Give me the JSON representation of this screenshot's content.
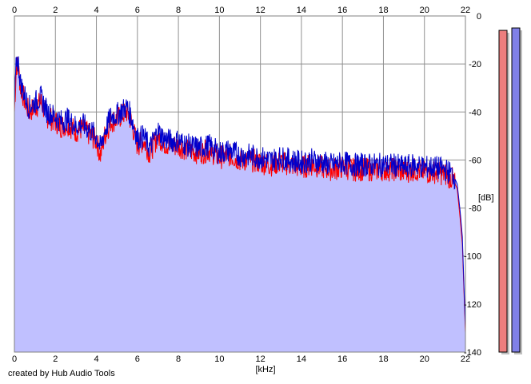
{
  "credit": "created by Hub Audio Tools",
  "chart_data": {
    "type": "area",
    "xlabel": "[kHz]",
    "ylabel": "[dB]",
    "xlim": [
      0,
      22
    ],
    "ylim": [
      -140,
      0
    ],
    "x_ticks": [
      0,
      2,
      4,
      6,
      8,
      10,
      12,
      14,
      16,
      18,
      20,
      22
    ],
    "y_ticks": [
      0,
      -20,
      -40,
      -60,
      -80,
      -100,
      -120,
      -140
    ],
    "grid": true,
    "x_axis_labels": "top-and-bottom",
    "y_axis_labels": "right",
    "series": [
      {
        "color": "#ff0000",
        "x": [
          0,
          0.1,
          0.2,
          0.3,
          0.5,
          0.7,
          1.0,
          1.3,
          1.6,
          2.0,
          2.3,
          2.6,
          3.0,
          3.3,
          3.6,
          4.0,
          4.2,
          4.4,
          4.7,
          5.0,
          5.3,
          5.5,
          5.7,
          6.0,
          6.3,
          6.6,
          7.0,
          7.3,
          7.6,
          8.0,
          8.5,
          9.0,
          9.5,
          10.0,
          10.5,
          11.0,
          11.5,
          12.0,
          12.5,
          13.0,
          13.5,
          14.0,
          14.5,
          15.0,
          15.5,
          16.0,
          16.5,
          17.0,
          17.5,
          18.0,
          18.5,
          19.0,
          19.5,
          20.0,
          20.5,
          21.0,
          21.4,
          21.6,
          21.75,
          21.85,
          21.95,
          22.0
        ],
        "y": [
          -40,
          -20,
          -22,
          -30,
          -35,
          -40,
          -38,
          -36,
          -42,
          -44,
          -46,
          -45,
          -48,
          -47,
          -49,
          -52,
          -58,
          -50,
          -44,
          -43,
          -41,
          -40,
          -44,
          -54,
          -52,
          -57,
          -50,
          -53,
          -54,
          -54,
          -56,
          -57,
          -56,
          -59,
          -58,
          -60,
          -60,
          -61,
          -62,
          -61,
          -62,
          -63,
          -62,
          -63,
          -64,
          -63,
          -64,
          -64,
          -64,
          -64,
          -64,
          -65,
          -64,
          -65,
          -65,
          -66,
          -68,
          -72,
          -85,
          -95,
          -120,
          -132
        ]
      },
      {
        "color": "#0000cc",
        "x": [
          0,
          0.1,
          0.2,
          0.3,
          0.5,
          0.7,
          1.0,
          1.3,
          1.6,
          2.0,
          2.3,
          2.6,
          3.0,
          3.3,
          3.6,
          4.0,
          4.2,
          4.4,
          4.7,
          5.0,
          5.3,
          5.5,
          5.7,
          6.0,
          6.3,
          6.6,
          7.0,
          7.3,
          7.6,
          8.0,
          8.5,
          9.0,
          9.5,
          10.0,
          10.5,
          11.0,
          11.5,
          12.0,
          12.5,
          13.0,
          13.5,
          14.0,
          14.5,
          15.0,
          15.5,
          16.0,
          16.5,
          17.0,
          17.5,
          18.0,
          18.5,
          19.0,
          19.5,
          20.0,
          20.5,
          21.0,
          21.4,
          21.6,
          21.75,
          21.85,
          21.95,
          22.0
        ],
        "y": [
          -38,
          -18,
          -20,
          -28,
          -33,
          -38,
          -36,
          -34,
          -40,
          -42,
          -44,
          -43,
          -46,
          -45,
          -47,
          -50,
          -55,
          -48,
          -42,
          -41,
          -39,
          -38,
          -42,
          -51,
          -50,
          -55,
          -48,
          -51,
          -52,
          -52,
          -54,
          -55,
          -54,
          -57,
          -56,
          -58,
          -58,
          -59,
          -60,
          -59,
          -60,
          -61,
          -60,
          -61,
          -62,
          -61,
          -62,
          -62,
          -62,
          -62,
          -62,
          -63,
          -62,
          -63,
          -63,
          -64,
          -66,
          -70,
          -82,
          -92,
          -118,
          -130
        ]
      }
    ],
    "fill_color": "#c0c0ff",
    "level_meters": [
      {
        "color": "#ec7e7e",
        "level_db": -6
      },
      {
        "color": "#8080e8",
        "level_db": -5
      }
    ]
  }
}
